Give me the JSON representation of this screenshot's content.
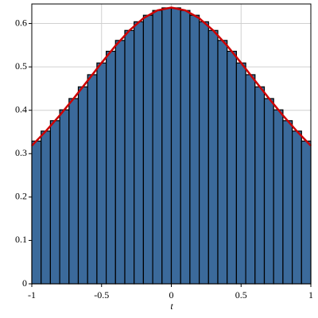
{
  "chart_data": {
    "type": "histogram",
    "x_label": "t",
    "bins": [
      -1,
      -0.9333,
      -0.8667,
      -0.8,
      -0.7333,
      -0.6667,
      -0.6,
      -0.5333,
      -0.4667,
      -0.4,
      -0.3333,
      -0.2667,
      -0.2,
      -0.1333,
      -0.0667,
      0,
      0.0667,
      0.1333,
      0.2,
      0.2667,
      0.3333,
      0.4,
      0.4667,
      0.5333,
      0.6,
      0.6667,
      0.7333,
      0.8,
      0.8667,
      0.9333,
      1
    ],
    "values": [
      0.329,
      0.352,
      0.376,
      0.401,
      0.427,
      0.454,
      0.482,
      0.509,
      0.536,
      0.561,
      0.584,
      0.604,
      0.619,
      0.63,
      0.636,
      0.636,
      0.63,
      0.619,
      0.604,
      0.584,
      0.561,
      0.536,
      0.509,
      0.482,
      0.454,
      0.427,
      0.401,
      0.376,
      0.352,
      0.329
    ],
    "color": "#3b6a9b",
    "overlay": {
      "type": "line",
      "color": "#cc0000",
      "x": [
        -1,
        -0.9,
        -0.8,
        -0.7,
        -0.6,
        -0.5,
        -0.4,
        -0.3,
        -0.2,
        -0.1,
        0,
        0.1,
        0.2,
        0.3,
        0.4,
        0.5,
        0.6,
        0.7,
        0.8,
        0.9,
        1
      ],
      "values": [
        0.3183,
        0.3517,
        0.3882,
        0.4273,
        0.4681,
        0.5093,
        0.5488,
        0.5841,
        0.6121,
        0.6303,
        0.6366,
        0.6303,
        0.6121,
        0.5841,
        0.5488,
        0.5093,
        0.4681,
        0.4273,
        0.3882,
        0.3517,
        0.3183
      ]
    },
    "xlim": [
      -1,
      1
    ],
    "ylim": [
      0,
      0.645
    ],
    "xticks": [
      -1,
      -0.5,
      0,
      0.5,
      1
    ],
    "yticks": [
      0,
      0.1,
      0.2,
      0.3,
      0.4,
      0.5,
      0.6
    ],
    "grid": true
  }
}
